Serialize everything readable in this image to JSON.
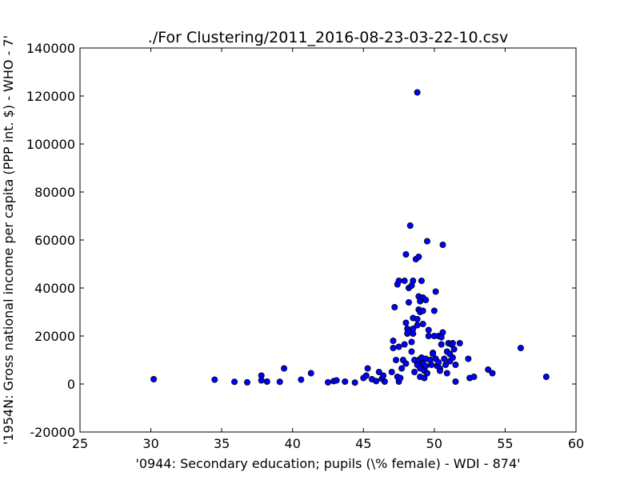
{
  "chart_data": {
    "type": "scatter",
    "title": "./For Clustering/2011_2016-08-23-03-22-10.csv",
    "xlabel": "'0944: Secondary education; pupils  (\\% female) - WDI - 874'",
    "ylabel": "'1954N: Gross national income per capita (PPP int. $) - WHO - 7'",
    "xlim": [
      25,
      60
    ],
    "ylim": [
      -20000,
      140000
    ],
    "xticks": [
      "25",
      "30",
      "35",
      "40",
      "45",
      "50",
      "55",
      "60"
    ],
    "yticks": [
      "-20000",
      "0",
      "20000",
      "40000",
      "60000",
      "80000",
      "100000",
      "120000",
      "140000"
    ],
    "grid": false,
    "legend": "none",
    "marker_color": "#0000ff",
    "marker_edge_color": "#000000",
    "points": [
      [
        30.2,
        2000
      ],
      [
        34.5,
        1800
      ],
      [
        35.9,
        900
      ],
      [
        36.8,
        700
      ],
      [
        37.8,
        3500
      ],
      [
        37.8,
        1500
      ],
      [
        38.2,
        1000
      ],
      [
        39.1,
        900
      ],
      [
        39.4,
        6500
      ],
      [
        40.6,
        1800
      ],
      [
        41.3,
        4500
      ],
      [
        42.5,
        700
      ],
      [
        42.9,
        1200
      ],
      [
        43.1,
        1500
      ],
      [
        43.7,
        1000
      ],
      [
        44.4,
        600
      ],
      [
        45.0,
        2500
      ],
      [
        45.2,
        3500
      ],
      [
        45.3,
        6500
      ],
      [
        45.6,
        2000
      ],
      [
        45.9,
        1200
      ],
      [
        46.1,
        5000
      ],
      [
        46.3,
        2200
      ],
      [
        46.4,
        3500
      ],
      [
        46.5,
        1000
      ],
      [
        47.0,
        5000
      ],
      [
        47.1,
        18000
      ],
      [
        47.1,
        15000
      ],
      [
        47.2,
        32000
      ],
      [
        47.3,
        10000
      ],
      [
        47.4,
        3000
      ],
      [
        47.5,
        15500
      ],
      [
        47.5,
        1000
      ],
      [
        47.6,
        2500
      ],
      [
        47.4,
        41500
      ],
      [
        47.5,
        43000
      ],
      [
        47.7,
        6500
      ],
      [
        47.8,
        10000
      ],
      [
        47.9,
        43000
      ],
      [
        47.9,
        16500
      ],
      [
        48.0,
        8500
      ],
      [
        48.0,
        25500
      ],
      [
        48.0,
        54000
      ],
      [
        48.1,
        21000
      ],
      [
        48.1,
        23000
      ],
      [
        48.2,
        34000
      ],
      [
        48.2,
        40000
      ],
      [
        48.3,
        66000
      ],
      [
        48.3,
        22000
      ],
      [
        48.4,
        13500
      ],
      [
        48.4,
        17500
      ],
      [
        48.4,
        41000
      ],
      [
        48.5,
        43000
      ],
      [
        48.5,
        27500
      ],
      [
        48.5,
        21000
      ],
      [
        48.5,
        23000
      ],
      [
        48.6,
        10000
      ],
      [
        48.6,
        5000
      ],
      [
        48.7,
        52000
      ],
      [
        48.8,
        27000
      ],
      [
        48.8,
        24500
      ],
      [
        48.8,
        8000
      ],
      [
        48.8,
        121500
      ],
      [
        48.9,
        53000
      ],
      [
        48.9,
        36500
      ],
      [
        48.9,
        31000
      ],
      [
        48.9,
        10000
      ],
      [
        49.0,
        34500
      ],
      [
        49.0,
        30000
      ],
      [
        49.0,
        6500
      ],
      [
        49.0,
        3000
      ],
      [
        49.1,
        43000
      ],
      [
        49.1,
        11000
      ],
      [
        49.2,
        36000
      ],
      [
        49.2,
        30500
      ],
      [
        49.2,
        8500
      ],
      [
        49.2,
        25000
      ],
      [
        49.3,
        5500
      ],
      [
        49.3,
        2500
      ],
      [
        49.4,
        35000
      ],
      [
        49.4,
        10500
      ],
      [
        49.4,
        7500
      ],
      [
        49.5,
        59500
      ],
      [
        49.5,
        4500
      ],
      [
        49.6,
        22500
      ],
      [
        49.6,
        20000
      ],
      [
        49.7,
        10000
      ],
      [
        49.8,
        8000
      ],
      [
        49.9,
        13000
      ],
      [
        49.9,
        12500
      ],
      [
        50.0,
        30500
      ],
      [
        50.0,
        20000
      ],
      [
        50.1,
        38500
      ],
      [
        50.1,
        10500
      ],
      [
        50.2,
        7500
      ],
      [
        50.3,
        20000
      ],
      [
        50.3,
        9000
      ],
      [
        50.4,
        6500
      ],
      [
        50.4,
        5500
      ],
      [
        50.5,
        19500
      ],
      [
        50.5,
        16500
      ],
      [
        50.6,
        58000
      ],
      [
        50.6,
        21500
      ],
      [
        50.7,
        10500
      ],
      [
        50.8,
        8000
      ],
      [
        50.9,
        13500
      ],
      [
        50.9,
        4500
      ],
      [
        51.0,
        17000
      ],
      [
        51.1,
        12500
      ],
      [
        51.1,
        9500
      ],
      [
        51.2,
        16500
      ],
      [
        51.3,
        17000
      ],
      [
        51.3,
        11000
      ],
      [
        51.4,
        14500
      ],
      [
        51.5,
        8000
      ],
      [
        51.5,
        1000
      ],
      [
        51.8,
        17000
      ],
      [
        52.4,
        10500
      ],
      [
        52.5,
        2500
      ],
      [
        52.8,
        3000
      ],
      [
        53.8,
        6000
      ],
      [
        54.1,
        4500
      ],
      [
        56.1,
        15000
      ],
      [
        57.9,
        3000
      ]
    ]
  }
}
